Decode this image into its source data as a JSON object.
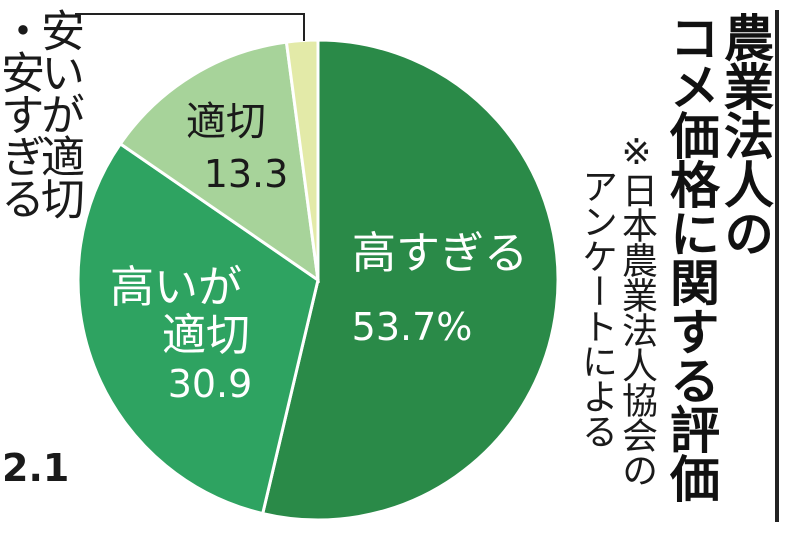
{
  "chart_data": {
    "type": "pie",
    "title": [
      "農業法人の",
      "コメ価格に関する評価"
    ],
    "note": [
      "※日本農業法人協会の",
      "アンケートによる"
    ],
    "slices": [
      {
        "label": "高すぎる",
        "value": 53.7,
        "value_text": "53.7%",
        "color": "#2a8a48"
      },
      {
        "label": "高いが適切",
        "value": 30.9,
        "value_text": "30.9",
        "color": "#2ea361"
      },
      {
        "label": "適切",
        "value": 13.3,
        "value_text": "13.3",
        "color": "#a7d39a"
      },
      {
        "label": "安いが適切・安すぎる",
        "value": 2.1,
        "value_text": "2.1",
        "color": "#e3eaa8"
      }
    ],
    "text_colors": {
      "dark_slice": "#ffffff",
      "light_slice": "#1a1a1a"
    }
  }
}
